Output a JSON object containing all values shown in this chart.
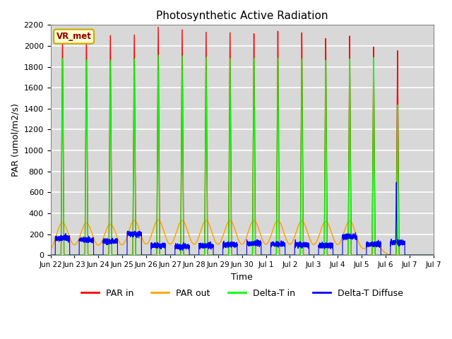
{
  "title": "Photosynthetic Active Radiation",
  "ylabel": "PAR (umol/m2/s)",
  "xlabel": "Time",
  "ylim": [
    0,
    2200
  ],
  "plot_bg_color": "#d8d8d8",
  "grid_color": "white",
  "vr_met_label": "VR_met",
  "legend_entries": [
    "PAR in",
    "PAR out",
    "Delta-T in",
    "Delta-T Diffuse"
  ],
  "legend_colors": [
    "red",
    "orange",
    "lime",
    "blue"
  ],
  "line_colors": {
    "par_in": "red",
    "par_out": "orange",
    "delta_t_in": "lime",
    "delta_t_diffuse": "blue"
  },
  "xtick_labels": [
    "Jun 22",
    "Jun 23",
    "Jun 24",
    "Jun 25",
    "Jun 26",
    "Jun 27",
    "Jun 28",
    "Jun 29",
    "Jun 30",
    "Jul 1",
    "Jul 2",
    "Jul 3",
    "Jul 4",
    "Jul 5",
    "Jul 6",
    "Jul 7",
    "Jul 7"
  ],
  "num_days": 16,
  "par_in_peaks": [
    2080,
    2110,
    2110,
    2120,
    2200,
    2180,
    2160,
    2160,
    2150,
    2170,
    2150,
    2090,
    2110,
    2000,
    1960,
    0
  ],
  "par_out_peaks": [
    310,
    305,
    295,
    330,
    335,
    330,
    330,
    330,
    330,
    330,
    325,
    320,
    325,
    125,
    0,
    0
  ],
  "delta_t_in_peaks": [
    1880,
    1870,
    1870,
    1890,
    1930,
    1930,
    1920,
    1910,
    1910,
    1910,
    1900,
    1880,
    1890,
    1900,
    1440,
    0
  ],
  "blue_base_values": [
    160,
    145,
    130,
    200,
    90,
    80,
    90,
    100,
    110,
    105,
    100,
    90,
    175,
    105,
    120,
    0
  ],
  "blue_spike_day": 14,
  "blue_spike_val": 700
}
